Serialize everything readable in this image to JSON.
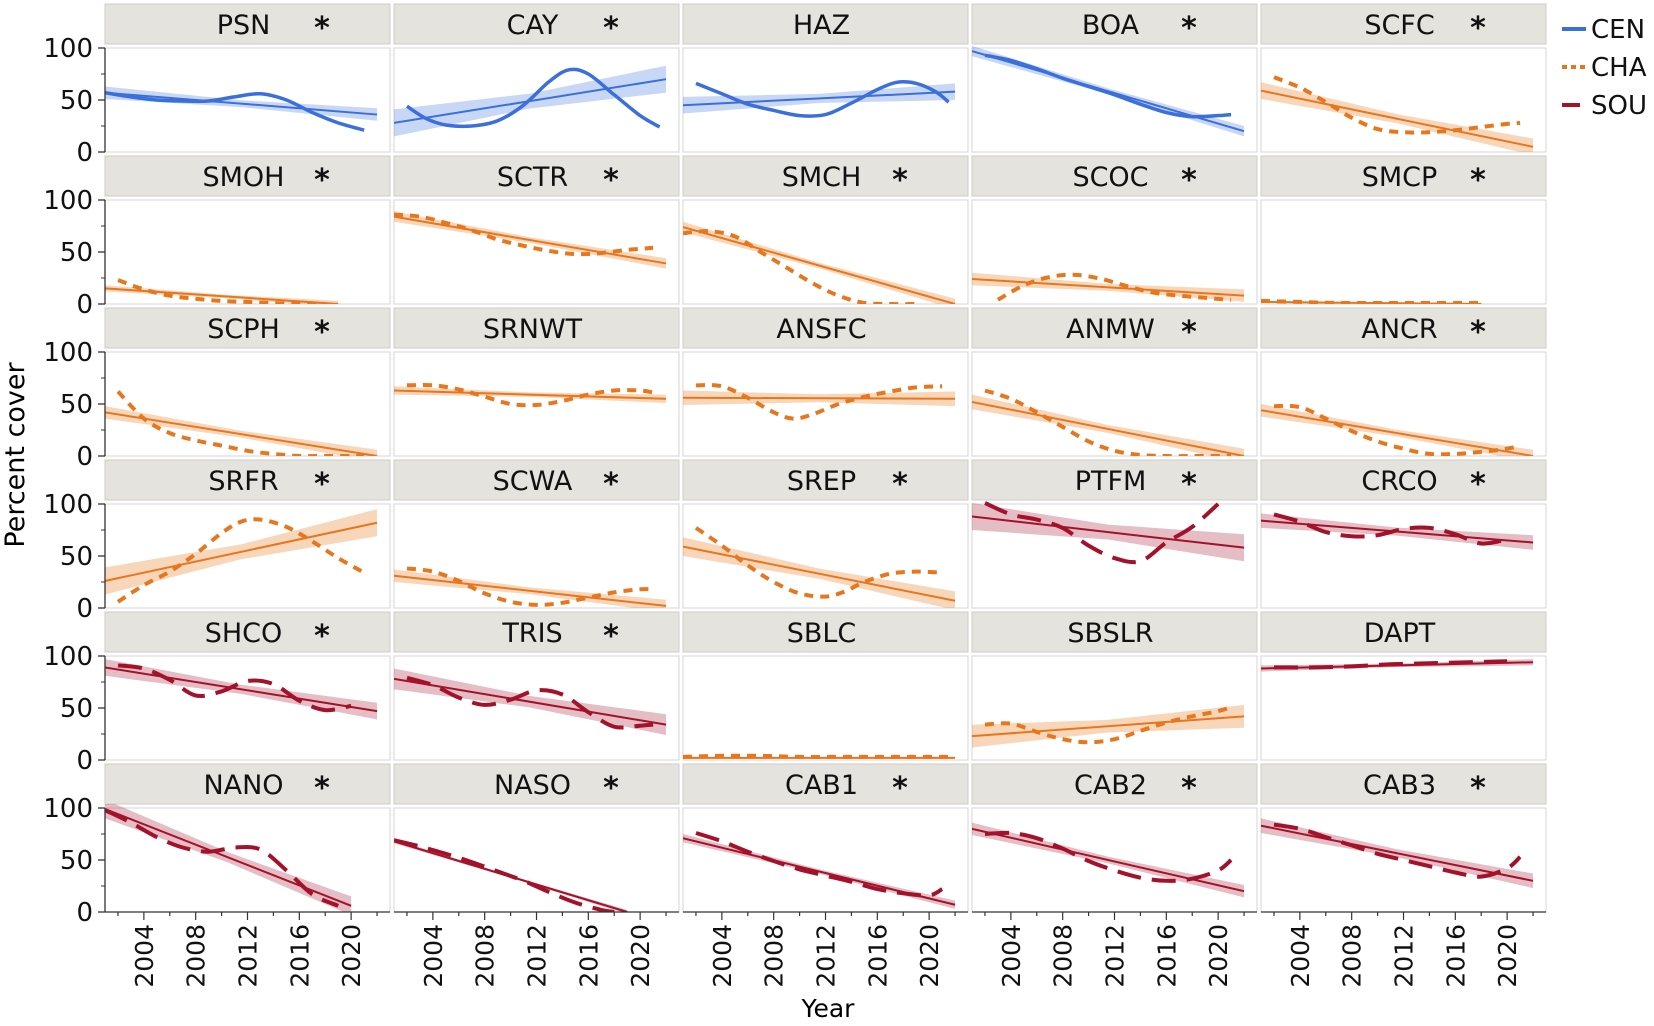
{
  "chart_data": {
    "type": "line",
    "title": "",
    "xlabel": "Year",
    "ylabel": "Percent cover",
    "xlim": [
      2001,
      2023
    ],
    "ylim": [
      0,
      100
    ],
    "x_ticks": [
      "2004",
      "2008",
      "2012",
      "2016",
      "2020"
    ],
    "x_tick_values": [
      2004,
      2008,
      2012,
      2016,
      2020
    ],
    "y_ticks": [
      "100",
      "50",
      "0"
    ],
    "y_tick_values": [
      100,
      50,
      0
    ],
    "legend": [
      {
        "key": "CEN",
        "label": "CEN",
        "color": "#3a6fdc",
        "style": "solid"
      },
      {
        "key": "CHA",
        "label": "CHA",
        "color": "#e8761c",
        "style": "dotted"
      },
      {
        "key": "SOU",
        "label": "SOU",
        "color": "#a3112a",
        "style": "dashed"
      }
    ],
    "legend_position": "top-right",
    "significance_marker": "*",
    "panels": [
      {
        "name": "PSN",
        "sig": true,
        "group": "CEN",
        "fit": [
          57,
          36
        ],
        "ci": 6,
        "x_start": 2001,
        "x_end": 2022,
        "smooth_x": [
          2001,
          2003,
          2005,
          2007,
          2009,
          2011,
          2013,
          2015,
          2017,
          2019,
          2021
        ],
        "smooth_y": [
          57,
          53,
          50,
          49,
          49,
          53,
          56,
          50,
          38,
          28,
          21
        ]
      },
      {
        "name": "CAY",
        "sig": true,
        "group": "CEN",
        "fit": [
          28,
          70
        ],
        "ci": 13,
        "x_start": 2001,
        "x_end": 2022,
        "smooth_x": [
          2002,
          2003.5,
          2005,
          2007,
          2009,
          2011,
          2013,
          2014.5,
          2016,
          2018,
          2020,
          2021.5
        ],
        "smooth_y": [
          44,
          32,
          26,
          25,
          30,
          45,
          68,
          79,
          75,
          55,
          35,
          24
        ]
      },
      {
        "name": "HAZ",
        "sig": false,
        "group": "CEN",
        "fit": [
          45,
          58
        ],
        "ci": 8,
        "x_start": 2001,
        "x_end": 2022,
        "smooth_x": [
          2002,
          2004,
          2006,
          2008,
          2010,
          2012,
          2014,
          2016,
          2017.5,
          2019,
          2020.5,
          2021.5
        ],
        "smooth_y": [
          66,
          56,
          46,
          40,
          35,
          36,
          47,
          60,
          67,
          66,
          58,
          48
        ]
      },
      {
        "name": "BOA",
        "sig": true,
        "group": "CEN",
        "fit": [
          97,
          20
        ],
        "ci": 5,
        "x_start": 2001,
        "x_end": 2022,
        "smooth_x": [
          2002,
          2004,
          2006,
          2008,
          2010,
          2012,
          2014,
          2016,
          2018,
          2020,
          2021
        ],
        "smooth_y": [
          93,
          88,
          80,
          71,
          63,
          55,
          46,
          38,
          34,
          35,
          36
        ]
      },
      {
        "name": "SCFC",
        "sig": true,
        "group": "CHA",
        "fit": [
          59,
          5
        ],
        "ci": 8,
        "x_start": 2001,
        "x_end": 2022,
        "smooth_x": [
          2002,
          2004,
          2006,
          2008,
          2010,
          2012,
          2014,
          2016,
          2018,
          2020,
          2021
        ],
        "smooth_y": [
          72,
          62,
          48,
          33,
          22,
          19,
          19,
          21,
          24,
          27,
          28
        ]
      },
      {
        "name": "SMOH",
        "sig": true,
        "group": "CHA",
        "fit": [
          15,
          0
        ],
        "ci": 3,
        "x_start": 2001,
        "x_end": 2019,
        "smooth_x": [
          2002,
          2004,
          2006,
          2008,
          2010,
          2012,
          2014,
          2016,
          2018
        ],
        "smooth_y": [
          23,
          14,
          8,
          5,
          3,
          2,
          1,
          0,
          0
        ]
      },
      {
        "name": "SCTR",
        "sig": true,
        "group": "CHA",
        "fit": [
          84,
          39
        ],
        "ci": 5,
        "x_start": 2001,
        "x_end": 2022,
        "smooth_x": [
          2001,
          2003,
          2005,
          2007,
          2009,
          2011,
          2013,
          2015,
          2017,
          2019,
          2021
        ],
        "smooth_y": [
          86,
          84,
          78,
          71,
          62,
          56,
          51,
          48,
          49,
          52,
          54
        ]
      },
      {
        "name": "SMCH",
        "sig": true,
        "group": "CHA",
        "fit": [
          74,
          0
        ],
        "ci": 5,
        "x_start": 2001,
        "x_end": 2022,
        "smooth_x": [
          2001,
          2003,
          2005,
          2007,
          2009,
          2011,
          2013,
          2015,
          2017,
          2019
        ],
        "smooth_y": [
          68,
          70,
          65,
          50,
          35,
          20,
          8,
          1,
          0,
          0
        ]
      },
      {
        "name": "SCOC",
        "sig": true,
        "group": "CHA",
        "fit": [
          24,
          8
        ],
        "ci": 6,
        "x_start": 2001,
        "x_end": 2022,
        "smooth_x": [
          2003,
          2005,
          2007,
          2009,
          2011,
          2013,
          2015,
          2017,
          2019,
          2021
        ],
        "smooth_y": [
          4,
          18,
          26,
          28,
          24,
          17,
          11,
          8,
          6,
          4
        ]
      },
      {
        "name": "SMCP",
        "sig": true,
        "group": "CHA",
        "fit": [
          2,
          0
        ],
        "ci": 1,
        "x_start": 2001,
        "x_end": 2018,
        "smooth_x": [
          2001,
          2004,
          2007,
          2010,
          2013,
          2016,
          2018
        ],
        "smooth_y": [
          3,
          2,
          1,
          1,
          1,
          1,
          1
        ]
      },
      {
        "name": "SCPH",
        "sig": true,
        "group": "CHA",
        "fit": [
          42,
          0
        ],
        "ci": 6,
        "x_start": 2001,
        "x_end": 2022,
        "smooth_x": [
          2002,
          2004,
          2006,
          2008,
          2010,
          2012,
          2014,
          2016,
          2018,
          2020,
          2021
        ],
        "smooth_y": [
          62,
          36,
          22,
          15,
          10,
          5,
          2,
          0,
          0,
          0,
          0
        ]
      },
      {
        "name": "SRNWT",
        "sig": false,
        "group": "CHA",
        "fit": [
          63,
          55
        ],
        "ci": 4,
        "x_start": 2001,
        "x_end": 2022,
        "smooth_x": [
          2002,
          2004,
          2006,
          2008,
          2010,
          2012,
          2014,
          2016,
          2018,
          2020,
          2021
        ],
        "smooth_y": [
          68,
          68,
          64,
          57,
          50,
          49,
          53,
          59,
          63,
          63,
          61
        ]
      },
      {
        "name": "ANSFC",
        "sig": false,
        "group": "CHA",
        "fit": [
          56,
          55
        ],
        "ci": 7,
        "x_start": 2001,
        "x_end": 2022,
        "smooth_x": [
          2002,
          2004,
          2006,
          2008,
          2009.5,
          2011,
          2013,
          2015,
          2017,
          2019,
          2021
        ],
        "smooth_y": [
          68,
          67,
          56,
          42,
          36,
          40,
          50,
          57,
          62,
          66,
          67
        ]
      },
      {
        "name": "ANMW",
        "sig": true,
        "group": "CHA",
        "fit": [
          52,
          0
        ],
        "ci": 7,
        "x_start": 2001,
        "x_end": 2022,
        "smooth_x": [
          2002,
          2004,
          2006,
          2008,
          2010,
          2012,
          2014,
          2016,
          2018,
          2020,
          2021
        ],
        "smooth_y": [
          63,
          55,
          42,
          28,
          14,
          5,
          1,
          0,
          0,
          0,
          0
        ]
      },
      {
        "name": "ANCR",
        "sig": true,
        "group": "CHA",
        "fit": [
          44,
          0
        ],
        "ci": 6,
        "x_start": 2001,
        "x_end": 2022,
        "smooth_x": [
          2002,
          2004,
          2006,
          2008,
          2010,
          2012,
          2014,
          2016,
          2018,
          2020,
          2021
        ],
        "smooth_y": [
          48,
          47,
          36,
          24,
          14,
          7,
          2,
          2,
          4,
          7,
          10
        ]
      },
      {
        "name": "SRFR",
        "sig": true,
        "group": "CHA",
        "fit": [
          26,
          82
        ],
        "ci": 13,
        "x_start": 2001,
        "x_end": 2022,
        "smooth_x": [
          2002,
          2004,
          2006,
          2008,
          2010,
          2011.5,
          2013,
          2015,
          2017,
          2019,
          2021
        ],
        "smooth_y": [
          6,
          22,
          35,
          52,
          72,
          83,
          85,
          78,
          64,
          48,
          34
        ]
      },
      {
        "name": "SCWA",
        "sig": true,
        "group": "CHA",
        "fit": [
          31,
          2
        ],
        "ci": 6,
        "x_start": 2001,
        "x_end": 2022,
        "smooth_x": [
          2002,
          2004,
          2006,
          2008,
          2010,
          2012,
          2014,
          2016,
          2018,
          2020,
          2021
        ],
        "smooth_y": [
          38,
          35,
          26,
          14,
          6,
          3,
          5,
          10,
          15,
          18,
          18
        ]
      },
      {
        "name": "SREP",
        "sig": true,
        "group": "CHA",
        "fit": [
          59,
          7
        ],
        "ci": 9,
        "x_start": 2001,
        "x_end": 2022,
        "smooth_x": [
          2002,
          2004,
          2006,
          2008,
          2010,
          2012,
          2013.5,
          2015,
          2017,
          2019,
          2021
        ],
        "smooth_y": [
          77,
          60,
          41,
          25,
          14,
          11,
          16,
          25,
          33,
          35,
          34
        ]
      },
      {
        "name": "PTFM",
        "sig": true,
        "group": "SOU",
        "fit": [
          88,
          58
        ],
        "ci": 13,
        "x_start": 2001,
        "x_end": 2022,
        "smooth_x": [
          2002,
          2004,
          2006,
          2008,
          2010,
          2012,
          2014,
          2016,
          2018,
          2020
        ],
        "smooth_y": [
          101,
          90,
          85,
          77,
          60,
          48,
          45,
          63,
          78,
          100
        ]
      },
      {
        "name": "CRCO",
        "sig": true,
        "group": "SOU",
        "fit": [
          84,
          63
        ],
        "ci": 7,
        "x_start": 2001,
        "x_end": 2022,
        "smooth_x": [
          2002,
          2004,
          2006,
          2008,
          2010,
          2012,
          2014,
          2016,
          2018,
          2020
        ],
        "smooth_y": [
          90,
          83,
          73,
          69,
          70,
          76,
          77,
          71,
          62,
          66
        ]
      },
      {
        "name": "SHCO",
        "sig": true,
        "group": "SOU",
        "fit": [
          89,
          47
        ],
        "ci": 8,
        "x_start": 2001,
        "x_end": 2022,
        "smooth_x": [
          2002,
          2004,
          2006,
          2008,
          2010,
          2012,
          2014,
          2016,
          2018,
          2020
        ],
        "smooth_y": [
          91,
          88,
          77,
          62,
          66,
          76,
          73,
          57,
          48,
          52
        ]
      },
      {
        "name": "TRIS",
        "sig": true,
        "group": "SOU",
        "fit": [
          78,
          34
        ],
        "ci": 10,
        "x_start": 2001,
        "x_end": 2022,
        "smooth_x": [
          2002,
          2004,
          2006,
          2008,
          2010,
          2012,
          2014,
          2016,
          2018,
          2020,
          2021
        ],
        "smooth_y": [
          79,
          72,
          60,
          53,
          58,
          67,
          63,
          46,
          32,
          33,
          34
        ]
      },
      {
        "name": "SBLC",
        "sig": false,
        "group": "CHA",
        "fit": [
          2,
          2
        ],
        "ci": 1,
        "x_start": 2001,
        "x_end": 2022,
        "smooth_x": [
          2001,
          2004,
          2007,
          2010,
          2013,
          2016,
          2019,
          2022
        ],
        "smooth_y": [
          3,
          4,
          4,
          3,
          3,
          3,
          3,
          3
        ]
      },
      {
        "name": "SBSLR",
        "sig": false,
        "group": "CHA",
        "fit": [
          23,
          42
        ],
        "ci": 11,
        "x_start": 2001,
        "x_end": 2022,
        "smooth_x": [
          2002,
          2004,
          2006,
          2008,
          2010,
          2012,
          2014,
          2016,
          2018,
          2020,
          2021
        ],
        "smooth_y": [
          34,
          35,
          27,
          20,
          17,
          20,
          28,
          36,
          42,
          47,
          51
        ]
      },
      {
        "name": "DAPT",
        "sig": false,
        "group": "SOU",
        "fit": [
          88,
          94
        ],
        "ci": 3,
        "x_start": 2001,
        "x_end": 2022,
        "smooth_x": [
          2002,
          2005,
          2008,
          2011,
          2014,
          2017,
          2020
        ],
        "smooth_y": [
          89,
          89,
          90,
          92,
          93,
          94,
          95
        ]
      },
      {
        "name": "NANO",
        "sig": true,
        "group": "SOU",
        "fit": [
          99,
          6
        ],
        "ci": 9,
        "x_start": 2001,
        "x_end": 2020,
        "smooth_x": [
          2001,
          2003,
          2005,
          2007,
          2009,
          2011,
          2013,
          2015,
          2017,
          2019
        ],
        "smooth_y": [
          98,
          86,
          72,
          62,
          58,
          62,
          60,
          40,
          17,
          6
        ]
      },
      {
        "name": "NASO",
        "sig": true,
        "group": "SOU",
        "fit": [
          68,
          0
        ],
        "ci": 2,
        "x_start": 2001,
        "x_end": 2019,
        "smooth_x": [
          2001,
          2003,
          2005,
          2007,
          2009,
          2011,
          2013,
          2015,
          2017,
          2018
        ],
        "smooth_y": [
          69,
          63,
          56,
          48,
          39,
          30,
          19,
          9,
          2,
          0
        ]
      },
      {
        "name": "CAB1",
        "sig": true,
        "group": "SOU",
        "fit": [
          71,
          7
        ],
        "ci": 4,
        "x_start": 2001,
        "x_end": 2022,
        "smooth_x": [
          2002,
          2004,
          2006,
          2008,
          2010,
          2012,
          2014,
          2016,
          2018,
          2020,
          2021
        ],
        "smooth_y": [
          76,
          68,
          58,
          49,
          41,
          35,
          29,
          22,
          18,
          16,
          22
        ]
      },
      {
        "name": "CAB2",
        "sig": true,
        "group": "SOU",
        "fit": [
          80,
          20
        ],
        "ci": 6,
        "x_start": 2001,
        "x_end": 2022,
        "smooth_x": [
          2002,
          2004,
          2006,
          2008,
          2010,
          2012,
          2014,
          2016,
          2018,
          2020,
          2021
        ],
        "smooth_y": [
          75,
          76,
          71,
          61,
          49,
          40,
          33,
          30,
          32,
          40,
          50
        ]
      },
      {
        "name": "CAB3",
        "sig": true,
        "group": "SOU",
        "fit": [
          83,
          30
        ],
        "ci": 7,
        "x_start": 2001,
        "x_end": 2022,
        "smooth_x": [
          2002,
          2004,
          2006,
          2008,
          2010,
          2012,
          2014,
          2016,
          2018,
          2020,
          2021
        ],
        "smooth_y": [
          84,
          80,
          72,
          64,
          56,
          50,
          44,
          38,
          34,
          42,
          53
        ]
      }
    ]
  }
}
